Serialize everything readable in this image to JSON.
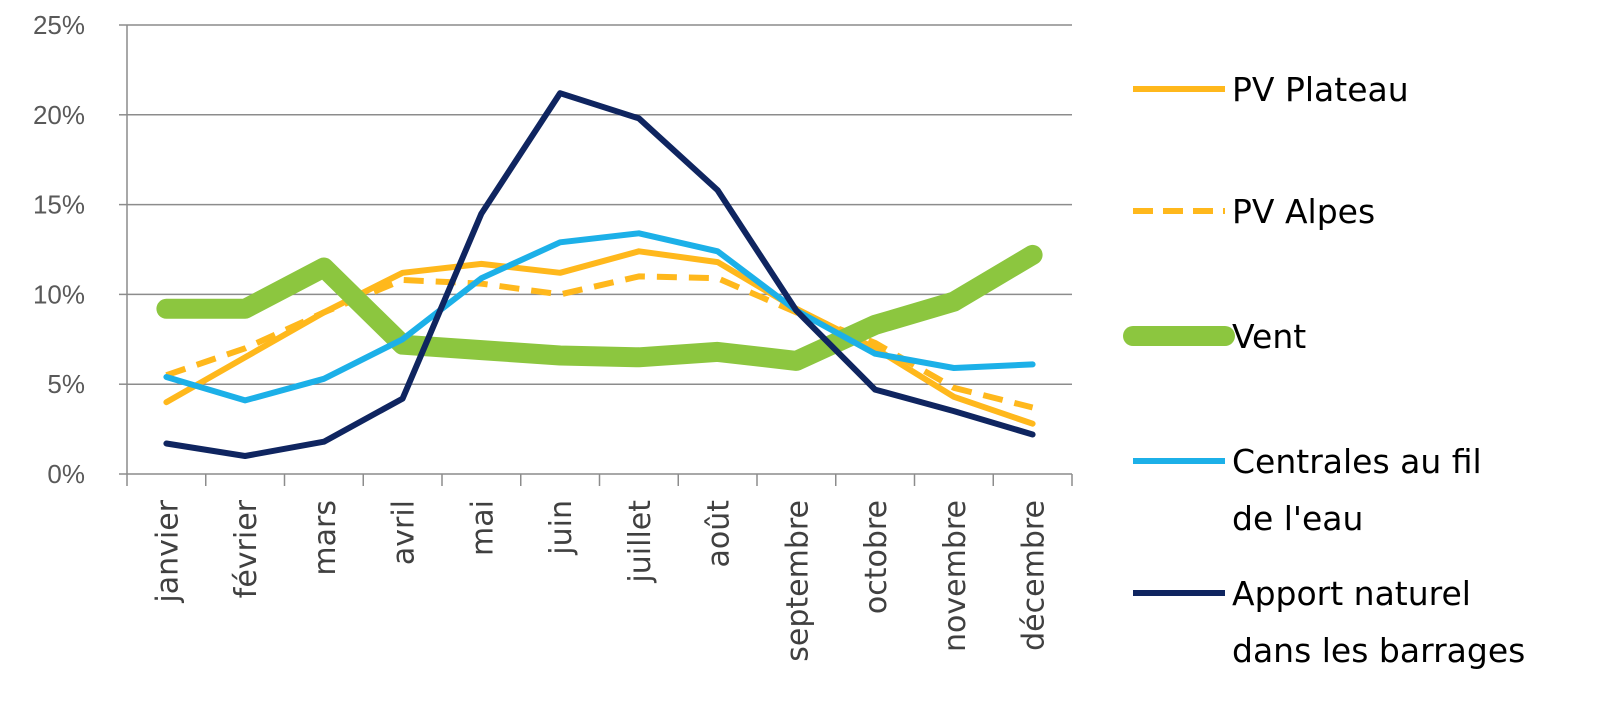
{
  "chart_data": {
    "type": "line",
    "title": "",
    "xlabel": "",
    "ylabel": "",
    "categories": [
      "janvier",
      "février",
      "mars",
      "avril",
      "mai",
      "juin",
      "juillet",
      "août",
      "septembre",
      "octobre",
      "novembre",
      "décembre"
    ],
    "yticks": [
      "0%",
      "5%",
      "10%",
      "15%",
      "20%",
      "25%"
    ],
    "ylim": [
      0,
      25
    ],
    "grid": "horizontal",
    "legend_position": "right",
    "series": [
      {
        "name": "PV Plateau",
        "color": "#FFB81C",
        "style": "solid",
        "values": [
          4.0,
          6.5,
          9.0,
          11.2,
          11.7,
          11.2,
          12.4,
          11.8,
          9.2,
          7.0,
          4.3,
          2.8
        ]
      },
      {
        "name": "PV Alpes",
        "color": "#FFB81C",
        "style": "dashed",
        "values": [
          5.5,
          7.0,
          9.0,
          10.8,
          10.6,
          10.0,
          11.0,
          10.9,
          9.0,
          7.3,
          4.8,
          3.7
        ]
      },
      {
        "name": "Vent",
        "color": "#8CC63F",
        "style": "thick",
        "values": [
          9.2,
          9.2,
          11.5,
          7.2,
          6.9,
          6.6,
          6.5,
          6.8,
          6.3,
          8.3,
          9.6,
          12.2
        ]
      },
      {
        "name": "Centrales au fil de l'eau",
        "color": "#1CB0E8",
        "style": "solid",
        "values": [
          5.4,
          4.1,
          5.3,
          7.5,
          10.9,
          12.9,
          13.4,
          12.4,
          9.1,
          6.7,
          5.9,
          6.1
        ]
      },
      {
        "name": "Apport naturel dans les barrages",
        "color": "#0F2560",
        "style": "solid",
        "values": [
          1.7,
          1.0,
          1.8,
          4.2,
          14.5,
          21.2,
          19.8,
          15.8,
          9.1,
          4.7,
          3.5,
          2.2
        ]
      }
    ]
  },
  "legend": {
    "labels": [
      [
        "PV Plateau"
      ],
      [
        "PV Alpes"
      ],
      [
        "Vent"
      ],
      [
        "Centrales au fil",
        "de l'eau"
      ],
      [
        "Apport naturel",
        "dans les barrages"
      ]
    ]
  }
}
